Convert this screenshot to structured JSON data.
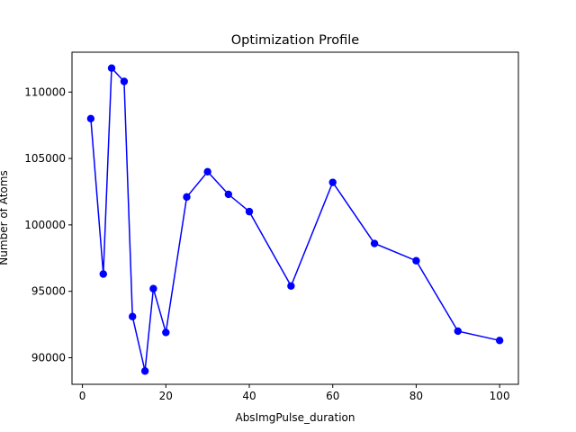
{
  "chart_data": {
    "type": "line",
    "title": "Optimization Profile",
    "xlabel": "AbsImgPulse_duration",
    "ylabel": "Number of Atoms",
    "xlim": [
      -2.5,
      104.5
    ],
    "ylim": [
      88000,
      113000
    ],
    "xticks": [
      0,
      20,
      40,
      60,
      80,
      100
    ],
    "yticks": [
      90000,
      95000,
      100000,
      105000,
      110000
    ],
    "grid": false,
    "series": [
      {
        "color": "#0000ff",
        "marker": "circle",
        "x": [
          2,
          5,
          7,
          10,
          12,
          15,
          17,
          20,
          25,
          30,
          35,
          40,
          50,
          60,
          70,
          80,
          90,
          100
        ],
        "y": [
          108000,
          96300,
          111800,
          110800,
          93100,
          89000,
          95200,
          91900,
          102100,
          104000,
          102300,
          101000,
          95400,
          103200,
          98600,
          97300,
          92000,
          91300
        ]
      }
    ]
  }
}
